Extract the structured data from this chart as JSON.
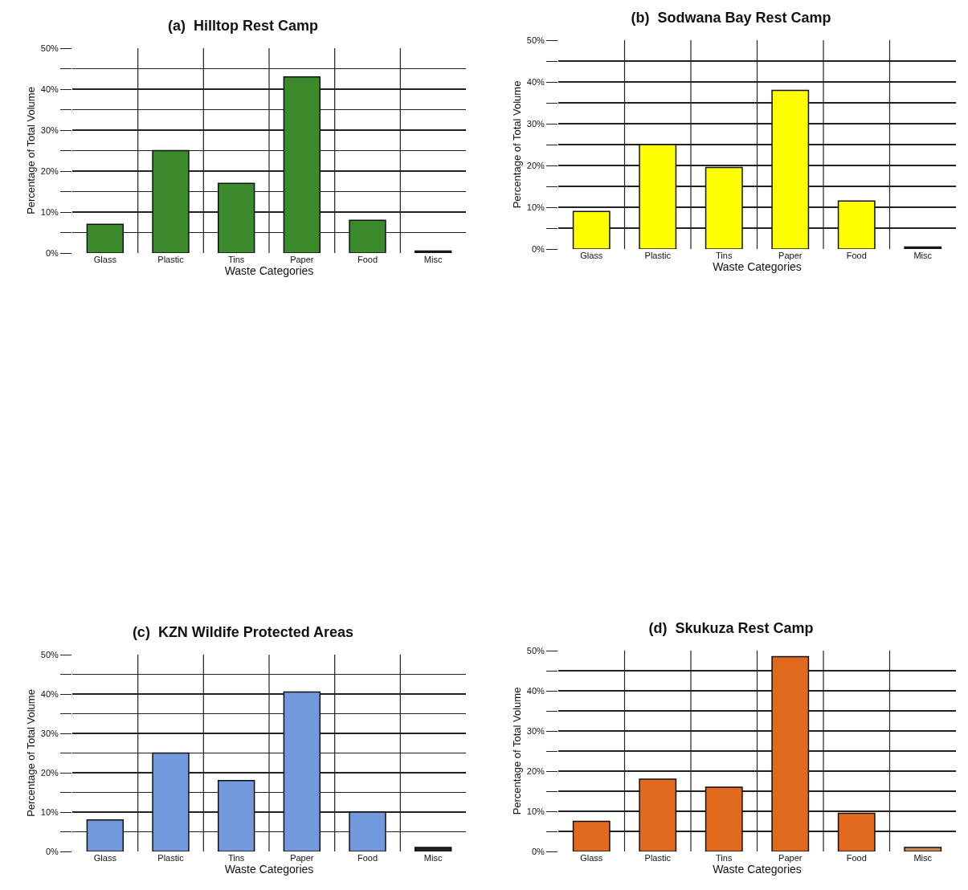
{
  "chart_data": [
    {
      "type": "bar",
      "title": "(a)  Hilltop Rest Camp",
      "xlabel": "Waste Categories",
      "ylabel": "Percentage of Total Volume",
      "categories": [
        "Glass",
        "Plastic",
        "Tins",
        "Paper",
        "Food",
        "Misc"
      ],
      "values": [
        7,
        25,
        17,
        43,
        8,
        0.5
      ],
      "colors": [
        "#3b8a2c",
        "#3b8a2c",
        "#3b8a2c",
        "#3b8a2c",
        "#3b8a2c",
        "#222222"
      ],
      "ylim": [
        0,
        50
      ],
      "yticks": [
        {
          "value": 0,
          "label": "0%"
        },
        {
          "value": 5,
          "label": null
        },
        {
          "value": 10,
          "label": "10%"
        },
        {
          "value": 15,
          "label": null
        },
        {
          "value": 20,
          "label": "20%"
        },
        {
          "value": 25,
          "label": null
        },
        {
          "value": 30,
          "label": "30%"
        },
        {
          "value": 35,
          "label": null
        },
        {
          "value": 40,
          "label": "40%"
        },
        {
          "value": 45,
          "label": null
        },
        {
          "value": 50,
          "label": "50%"
        }
      ],
      "grid": true
    },
    {
      "type": "bar",
      "title": "(b)  Sodwana Bay Rest Camp",
      "xlabel": "Waste Categories",
      "ylabel": "Percentage of Total Volume",
      "categories": [
        "Glass",
        "Plastic",
        "Tins",
        "Paper",
        "Food",
        "Misc"
      ],
      "values": [
        9,
        25,
        19.5,
        38,
        11.5,
        0.5
      ],
      "colors": [
        "#ffff00",
        "#ffff00",
        "#ffff00",
        "#ffff00",
        "#ffff00",
        "#222222"
      ],
      "ylim": [
        0,
        50
      ],
      "yticks": [
        {
          "value": 0,
          "label": "0%"
        },
        {
          "value": 5,
          "label": null
        },
        {
          "value": 10,
          "label": "10%"
        },
        {
          "value": 15,
          "label": null
        },
        {
          "value": 20,
          "label": "20%"
        },
        {
          "value": 25,
          "label": null
        },
        {
          "value": 30,
          "label": "30%"
        },
        {
          "value": 35,
          "label": null
        },
        {
          "value": 40,
          "label": "40%"
        },
        {
          "value": 45,
          "label": null
        },
        {
          "value": 50,
          "label": "50%"
        }
      ],
      "grid": true
    },
    {
      "type": "bar",
      "title": "(c)  KZN Wildife Protected Areas",
      "xlabel": "Waste Categories",
      "ylabel": "Percentage of Total Volume",
      "categories": [
        "Glass",
        "Plastic",
        "Tins",
        "Paper",
        "Food",
        "Misc"
      ],
      "values": [
        8,
        25,
        18,
        40.5,
        10,
        1
      ],
      "colors": [
        "#7199dc",
        "#7199dc",
        "#7199dc",
        "#7199dc",
        "#7199dc",
        "#222222"
      ],
      "ylim": [
        0,
        50
      ],
      "yticks": [
        {
          "value": 0,
          "label": "0%"
        },
        {
          "value": 5,
          "label": null
        },
        {
          "value": 10,
          "label": "10%"
        },
        {
          "value": 15,
          "label": null
        },
        {
          "value": 20,
          "label": "20%"
        },
        {
          "value": 25,
          "label": null
        },
        {
          "value": 30,
          "label": "30%"
        },
        {
          "value": 35,
          "label": null
        },
        {
          "value": 40,
          "label": "40%"
        },
        {
          "value": 45,
          "label": null
        },
        {
          "value": 50,
          "label": "50%"
        }
      ],
      "grid": true
    },
    {
      "type": "bar",
      "title": "(d)  Skukuza Rest Camp",
      "xlabel": "Waste Categories",
      "ylabel": "Percentage of Total Volume",
      "categories": [
        "Glass",
        "Plastic",
        "Tins",
        "Paper",
        "Food",
        "Misc"
      ],
      "values": [
        7.5,
        18,
        16,
        48.5,
        9.5,
        1
      ],
      "colors": [
        "#e0691e",
        "#e0691e",
        "#e0691e",
        "#e0691e",
        "#e0691e",
        "#c98d55"
      ],
      "ylim": [
        0,
        50
      ],
      "yticks": [
        {
          "value": 0,
          "label": "0%"
        },
        {
          "value": 5,
          "label": null
        },
        {
          "value": 10,
          "label": "10%"
        },
        {
          "value": 15,
          "label": null
        },
        {
          "value": 20,
          "label": "20%"
        },
        {
          "value": 25,
          "label": null
        },
        {
          "value": 30,
          "label": "30%"
        },
        {
          "value": 35,
          "label": null
        },
        {
          "value": 40,
          "label": "40%"
        },
        {
          "value": 45,
          "label": null
        },
        {
          "value": 50,
          "label": "50%"
        }
      ],
      "grid": true
    }
  ]
}
